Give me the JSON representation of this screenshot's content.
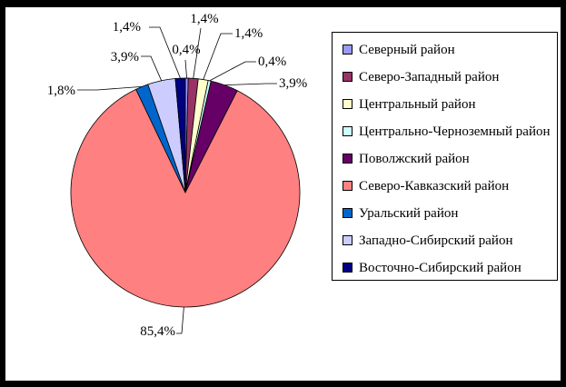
{
  "chart_data": {
    "type": "pie",
    "legend_position": "right",
    "direction": "clockwise",
    "start_angle_deg": 0,
    "decimal_separator": ",",
    "total_percent": 100.0,
    "slices": [
      {
        "name": "Северный район",
        "value": 0.4,
        "percent_label": "0,4%",
        "color": "#9999FF"
      },
      {
        "name": "Северо-Западный район",
        "value": 1.4,
        "percent_label": "1,4%",
        "color": "#993366"
      },
      {
        "name": "Центральный район",
        "value": 1.4,
        "percent_label": "1,4%",
        "color": "#FFFFCC"
      },
      {
        "name": "Центрально-Черноземный район",
        "value": 0.4,
        "percent_label": "0,4%",
        "color": "#CCFFFF"
      },
      {
        "name": "Поволжский район",
        "value": 3.9,
        "percent_label": "3,9%",
        "color": "#660066"
      },
      {
        "name": "Северо-Кавказский район",
        "value": 85.4,
        "percent_label": "85,4%",
        "color": "#FF8080"
      },
      {
        "name": "Уральский район",
        "value": 1.8,
        "percent_label": "1,8%",
        "color": "#0066CC"
      },
      {
        "name": "Западно-Сибирский район",
        "value": 3.9,
        "percent_label": "3,9%",
        "color": "#CCCCFF"
      },
      {
        "name": "Восточно-Сибирский район",
        "value": 1.4,
        "percent_label": "1,4%",
        "color": "#000080"
      }
    ]
  }
}
